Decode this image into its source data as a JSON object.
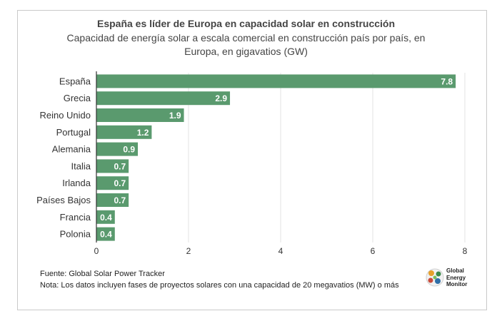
{
  "header": {
    "title": "España es líder de Europa en capacidad solar en construcción",
    "subtitle": "Capacidad de energía solar a escala comercial en construcción país por país, en Europa, en gigavatios (GW)"
  },
  "footer": {
    "source": "Fuente: Global Solar Power Tracker",
    "note": "Nota: Los datos incluyen fases de proyectos solares con una capacidad de 20 megavatios (MW) o más"
  },
  "logo": {
    "name": "Global Energy Monitor",
    "line1": "Global",
    "line2": "Energy",
    "line3": "Monitor"
  },
  "colors": {
    "bar": "#5a9a6e",
    "grid": "#e3e3e3",
    "label": "#ffffff"
  },
  "chart_data": {
    "type": "bar",
    "orientation": "horizontal",
    "categories": [
      "España",
      "Grecia",
      "Reino Unido",
      "Portugal",
      "Alemania",
      "Italia",
      "Irlanda",
      "Países Bajos",
      "Francia",
      "Polonia"
    ],
    "values": [
      7.8,
      2.9,
      1.9,
      1.2,
      0.9,
      0.7,
      0.7,
      0.7,
      0.4,
      0.4
    ],
    "data_labels": [
      "7.8",
      "2.9",
      "1.9",
      "1.2",
      "0.9",
      "0.7",
      "0.7",
      "0.7",
      "0.4",
      "0.4"
    ],
    "xlim": [
      0,
      8
    ],
    "xticks": [
      0,
      2,
      4,
      6,
      8
    ],
    "grid": "vertical",
    "xlabel": "",
    "ylabel": ""
  }
}
